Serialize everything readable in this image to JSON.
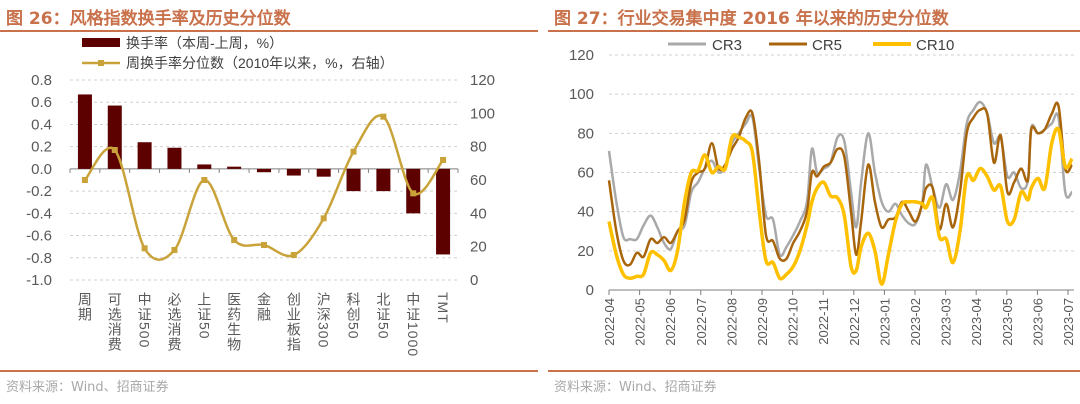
{
  "left": {
    "title": "图 26：风格指数换手率及历史分位数",
    "source": "资料来源：Wind、招商证券"
  },
  "right": {
    "title": "图 27：行业交易集中度 2016 年以来的历史分位数",
    "source": "资料来源：Wind、招商证券"
  },
  "colors": {
    "title": "#c8714b",
    "bar": "#5c0000",
    "line_left": "#c9a33a",
    "cr3": "#a9a9a9",
    "cr5": "#a8650c",
    "cr10": "#ffc000"
  },
  "chart_data": [
    {
      "type": "bar+line",
      "categories": [
        "周期",
        "可选消费",
        "中证500",
        "必选消费",
        "上证50",
        "医药生物",
        "金融",
        "创业板指",
        "沪深300",
        "科创50",
        "北证50",
        "中证1000",
        "TMT"
      ],
      "series": [
        {
          "name": "换手率（本周-上周，%）",
          "type": "bar",
          "axis": "left",
          "values": [
            0.67,
            0.57,
            0.24,
            0.19,
            0.04,
            0.02,
            -0.03,
            -0.06,
            -0.07,
            -0.2,
            -0.2,
            -0.4,
            -0.77
          ]
        },
        {
          "name": "周换手率分位数（2010年以来，%，右轴）",
          "type": "line",
          "axis": "right",
          "values": [
            60,
            78,
            19,
            18,
            60,
            24,
            21,
            15,
            37,
            77,
            98,
            52,
            72
          ]
        }
      ],
      "ylim_left": [
        -1.0,
        0.8
      ],
      "yticks_left": [
        "0.8",
        "0.6",
        "0.4",
        "0.2",
        "0.0",
        "-0.2",
        "-0.4",
        "-0.6",
        "-0.8",
        "-1.0"
      ],
      "ylim_right": [
        0,
        120
      ],
      "yticks_right": [
        "120",
        "100",
        "80",
        "60",
        "40",
        "20",
        "0"
      ],
      "grid": true,
      "legend": "top-left"
    },
    {
      "type": "line",
      "x_unit": "months since 2022-04",
      "x": [
        0,
        0.24,
        0.47,
        0.69,
        0.91,
        1.13,
        1.36,
        1.58,
        1.8,
        2.02,
        2.24,
        2.47,
        2.69,
        2.91,
        3.13,
        3.36,
        3.58,
        3.8,
        4.02,
        4.24,
        4.47,
        4.69,
        4.91,
        5.13,
        5.36,
        5.58,
        5.8,
        6.02,
        6.24,
        6.47,
        6.63,
        6.8,
        7.02,
        7.24,
        7.47,
        7.69,
        7.91,
        8.08,
        8.24,
        8.47,
        8.69,
        8.91,
        9.13,
        9.36,
        9.58,
        9.8,
        10.02,
        10.24,
        10.36,
        10.58,
        10.8,
        11.02,
        11.24,
        11.47,
        11.69,
        11.91,
        12.13,
        12.36,
        12.58,
        12.8,
        13.02,
        13.24,
        13.47,
        13.69,
        13.8,
        14.02,
        14.24,
        14.47,
        14.69,
        14.91,
        15.13
      ],
      "series": [
        {
          "name": "CR3",
          "values": [
            71,
            45,
            27,
            26,
            26,
            33,
            38,
            32,
            24,
            21,
            30,
            33,
            50,
            55,
            62,
            66,
            60,
            63,
            75,
            80,
            85,
            88,
            62,
            38,
            36,
            18,
            22,
            28,
            35,
            45,
            72,
            60,
            62,
            65,
            78,
            76,
            50,
            32,
            55,
            80,
            60,
            45,
            40,
            44,
            38,
            34,
            34,
            45,
            64,
            52,
            42,
            54,
            46,
            60,
            85,
            92,
            96,
            90,
            75,
            78,
            58,
            60,
            52,
            56,
            83,
            80,
            82,
            85,
            88,
            50,
            50
          ]
        },
        {
          "name": "CR5",
          "values": [
            56,
            30,
            15,
            13,
            19,
            17,
            26,
            24,
            27,
            24,
            30,
            36,
            55,
            60,
            62,
            75,
            62,
            64,
            72,
            78,
            88,
            90,
            65,
            28,
            25,
            16,
            16,
            24,
            30,
            40,
            60,
            58,
            63,
            65,
            72,
            68,
            40,
            18,
            35,
            64,
            45,
            32,
            36,
            37,
            45,
            40,
            35,
            44,
            52,
            52,
            31,
            44,
            32,
            50,
            80,
            88,
            92,
            90,
            65,
            79,
            50,
            55,
            62,
            56,
            82,
            80,
            82,
            90,
            94,
            62,
            64
          ]
        },
        {
          "name": "CR10",
          "values": [
            35,
            18,
            8,
            6,
            7,
            8,
            19,
            18,
            15,
            10,
            20,
            45,
            60,
            61,
            69,
            60,
            63,
            62,
            78,
            78,
            76,
            70,
            40,
            15,
            14,
            6,
            8,
            12,
            20,
            33,
            45,
            52,
            55,
            48,
            47,
            38,
            12,
            10,
            22,
            29,
            20,
            3,
            18,
            35,
            44,
            45,
            45,
            44,
            42,
            47,
            27,
            26,
            14,
            30,
            58,
            56,
            62,
            58,
            51,
            53,
            35,
            36,
            50,
            46,
            52,
            57,
            52,
            75,
            82,
            63,
            67
          ]
        }
      ],
      "xticks": [
        "2022-04",
        "2022-05",
        "2022-06",
        "2022-07",
        "2022-08",
        "2022-09",
        "2022-10",
        "2022-11",
        "2022-12",
        "2023-01",
        "2023-02",
        "2023-03",
        "2023-04",
        "2023-05",
        "2023-06",
        "2023-07"
      ],
      "ylim": [
        0,
        120
      ],
      "yticks": [
        "120",
        "100",
        "80",
        "60",
        "40",
        "20",
        "0"
      ],
      "grid": true,
      "legend": "top"
    }
  ]
}
